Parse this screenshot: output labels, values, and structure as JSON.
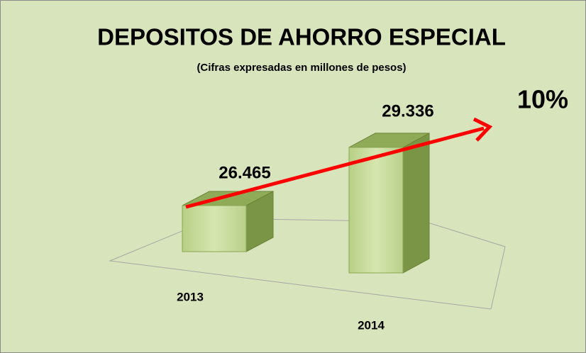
{
  "chart_data": {
    "type": "bar3d",
    "title": "DEPOSITOS DE AHORRO ESPECIAL",
    "subtitle": "(Cifras expresadas en millones de pesos)",
    "categories": [
      "2013",
      "2014"
    ],
    "values": [
      26465,
      29336
    ],
    "value_labels": [
      "26.465",
      "29.336"
    ],
    "annotation": "10%",
    "color": "#c4d79b",
    "ylim": [
      24800,
      30000
    ]
  }
}
